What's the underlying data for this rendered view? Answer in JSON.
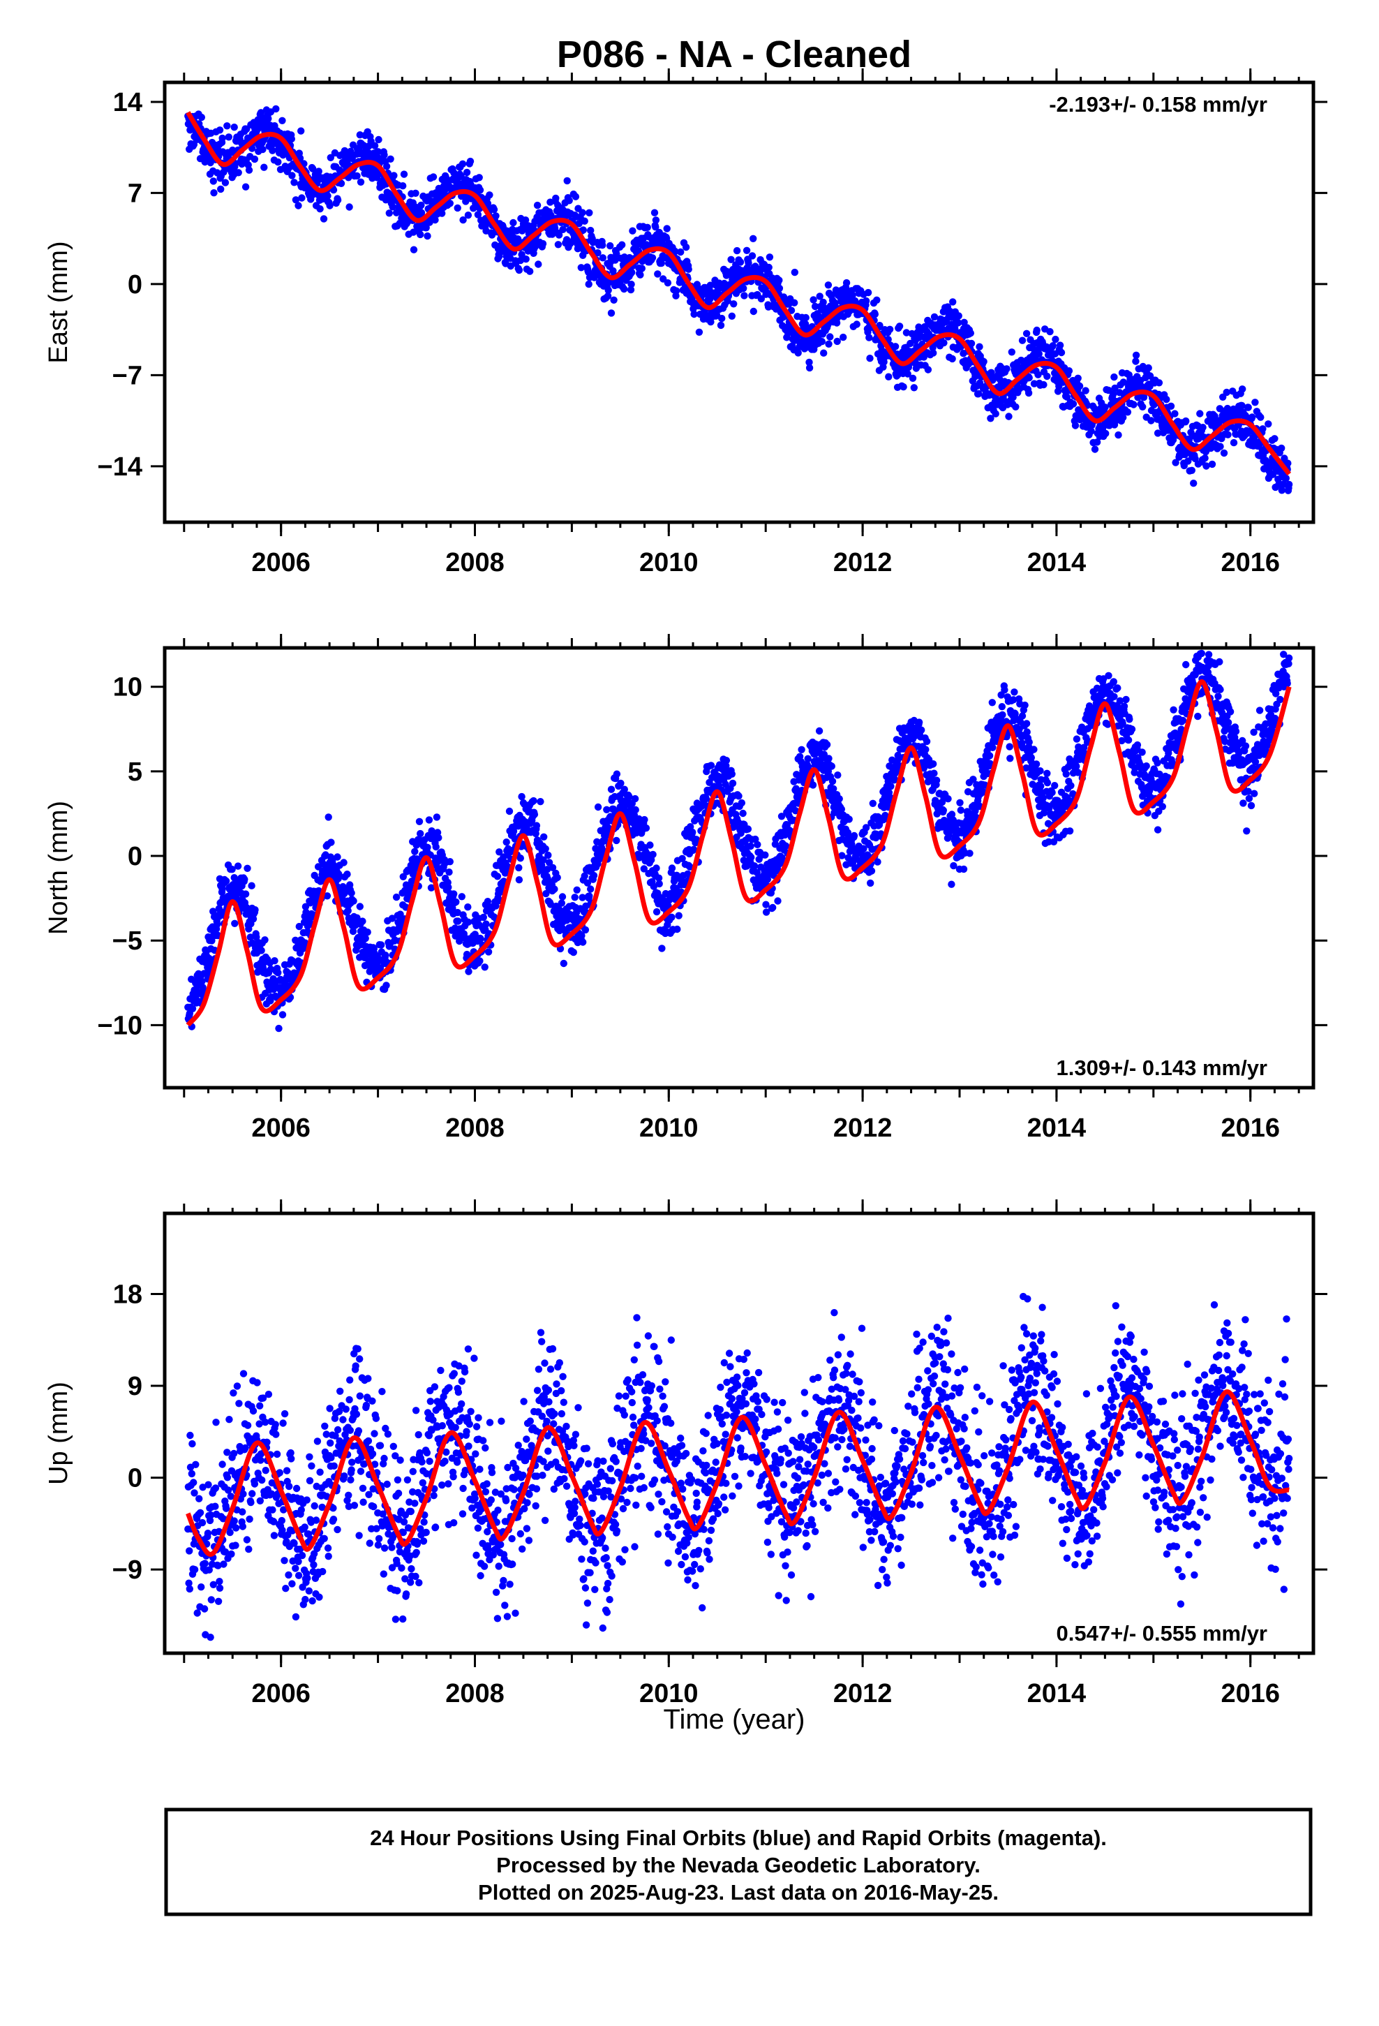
{
  "title": "P086  - NA - Cleaned",
  "xlabel": "Time (year)",
  "footer": {
    "line1": "24 Hour Positions Using Final Orbits (blue) and Rapid Orbits (magenta).",
    "line2": "Processed by the Nevada Geodetic Laboratory.",
    "line3": "Plotted on 2025-Aug-23. Last data on 2016-May-25."
  },
  "colors": {
    "points": "#0000ff",
    "fit": "#ff0000",
    "frame": "#000000"
  },
  "chart_data": [
    {
      "type": "scatter",
      "ylabel": "East (mm)",
      "rate_label": "-2.193+/- 0.158 mm/yr",
      "rate_position": "top-right",
      "xlim": [
        2004.8,
        2016.65
      ],
      "ylim": [
        -18.3,
        15.5
      ],
      "xticks": [
        2006,
        2008,
        2010,
        2012,
        2014,
        2016
      ],
      "xtick_labels": [
        "2006",
        "2008",
        "2010",
        "2012",
        "2014",
        "2016"
      ],
      "yticks": [
        14,
        7,
        0,
        -7,
        -14
      ],
      "ytick_labels": [
        "14",
        "7",
        "0",
        "−7",
        "−14"
      ],
      "series": [
        {
          "kind": "points",
          "color": "#0000ff",
          "start": 2005.04,
          "end": 2016.4,
          "offset": 11.92,
          "rate": -2.193,
          "annual_amp": 1.8,
          "annual_phase_year": 2005.88,
          "noise_sd": 1.0
        },
        {
          "kind": "fit",
          "color": "#ff0000",
          "x": [
            2005.04,
            2005.2,
            2005.4,
            2005.6,
            2005.8,
            2006.0,
            2006.2,
            2006.4,
            2006.6,
            2006.8,
            2007.0,
            2007.2,
            2007.4,
            2007.6,
            2007.8,
            2008.0,
            2008.2,
            2008.4,
            2008.6,
            2008.8,
            2009.0,
            2009.2,
            2009.4,
            2009.6,
            2009.8,
            2010.0,
            2010.2,
            2010.4,
            2010.6,
            2010.8,
            2011.0,
            2011.2,
            2011.4,
            2011.6,
            2011.8,
            2012.0,
            2012.2,
            2012.4,
            2012.6,
            2012.8,
            2013.0,
            2013.2,
            2013.4,
            2013.6,
            2013.8,
            2014.0,
            2014.2,
            2014.4,
            2014.6,
            2014.8,
            2015.0,
            2015.2,
            2015.4,
            2015.6,
            2015.8,
            2016.0,
            2016.2,
            2016.4
          ],
          "y": [
            13.2,
            11.2,
            9.2,
            10.3,
            11.4,
            11.2,
            9.0,
            7.2,
            8.1,
            9.2,
            9.1,
            6.8,
            4.9,
            5.9,
            7.0,
            6.8,
            4.6,
            2.7,
            3.7,
            4.8,
            4.6,
            2.4,
            0.5,
            1.5,
            2.6,
            2.4,
            0.1,
            -1.8,
            -0.7,
            0.4,
            0.2,
            -2.0,
            -3.9,
            -2.9,
            -1.8,
            -2.0,
            -4.2,
            -6.1,
            -5.1,
            -4.0,
            -4.2,
            -6.4,
            -8.4,
            -7.3,
            -6.2,
            -6.4,
            -8.6,
            -10.5,
            -9.5,
            -8.4,
            -8.6,
            -10.8,
            -12.7,
            -11.7,
            -10.6,
            -10.8,
            -12.7,
            -14.6
          ]
        }
      ]
    },
    {
      "type": "scatter",
      "ylabel": "North (mm)",
      "rate_label": "1.309+/- 0.143 mm/yr",
      "rate_position": "bottom-right",
      "xlim": [
        2004.8,
        2016.65
      ],
      "ylim": [
        -13.7,
        12.3
      ],
      "xticks": [
        2006,
        2008,
        2010,
        2012,
        2014,
        2016
      ],
      "xtick_labels": [
        "2006",
        "2008",
        "2010",
        "2012",
        "2014",
        "2016"
      ],
      "yticks": [
        10,
        5,
        0,
        -5,
        -10
      ],
      "ytick_labels": [
        "10",
        "5",
        "0",
        "−5",
        "−10"
      ],
      "series": [
        {
          "kind": "points",
          "color": "#0000ff",
          "start": 2005.04,
          "end": 2016.4,
          "offset": -6.0,
          "rate": 1.309,
          "annual_amp": 3.3,
          "annual_phase_year": 2005.5,
          "noise_sd": 0.9
        },
        {
          "kind": "fit",
          "color": "#ff0000",
          "x": [
            2005.04,
            2005.2,
            2005.35,
            2005.5,
            2005.65,
            2005.8,
            2006.0,
            2006.2,
            2006.35,
            2006.5,
            2006.65,
            2006.8,
            2007.0,
            2007.2,
            2007.35,
            2007.5,
            2007.65,
            2007.8,
            2008.0,
            2008.2,
            2008.35,
            2008.5,
            2008.65,
            2008.8,
            2009.0,
            2009.2,
            2009.35,
            2009.5,
            2009.65,
            2009.8,
            2010.0,
            2010.2,
            2010.35,
            2010.5,
            2010.65,
            2010.8,
            2011.0,
            2011.2,
            2011.35,
            2011.5,
            2011.65,
            2011.8,
            2012.0,
            2012.2,
            2012.35,
            2012.5,
            2012.65,
            2012.8,
            2013.0,
            2013.2,
            2013.35,
            2013.5,
            2013.65,
            2013.8,
            2014.0,
            2014.2,
            2014.35,
            2014.5,
            2014.65,
            2014.8,
            2015.0,
            2015.2,
            2015.35,
            2015.5,
            2015.65,
            2015.8,
            2016.0,
            2016.2,
            2016.4
          ],
          "y": [
            -10.0,
            -8.8,
            -5.8,
            -2.7,
            -5.6,
            -9.0,
            -8.5,
            -7.1,
            -4.0,
            -1.4,
            -4.3,
            -7.7,
            -7.2,
            -5.8,
            -2.7,
            -0.1,
            -3.0,
            -6.4,
            -5.9,
            -4.5,
            -1.4,
            1.2,
            -1.7,
            -5.1,
            -4.6,
            -3.2,
            -0.1,
            2.5,
            -0.4,
            -3.8,
            -3.3,
            -1.9,
            1.2,
            3.8,
            0.9,
            -2.5,
            -2.0,
            -0.6,
            2.5,
            5.1,
            2.2,
            -1.2,
            -0.7,
            0.7,
            3.8,
            6.4,
            3.5,
            0.1,
            0.6,
            2.0,
            5.1,
            7.7,
            4.8,
            1.4,
            1.9,
            3.3,
            6.4,
            9.0,
            6.1,
            2.7,
            3.2,
            4.6,
            7.7,
            10.3,
            7.4,
            4.0,
            4.5,
            6.0,
            10.0
          ]
        }
      ]
    },
    {
      "type": "scatter",
      "ylabel": "Up (mm)",
      "rate_label": "0.547+/- 0.555 mm/yr",
      "rate_position": "bottom-right",
      "xlim": [
        2004.8,
        2016.65
      ],
      "ylim": [
        -17.2,
        25.9
      ],
      "xticks": [
        2006,
        2008,
        2010,
        2012,
        2014,
        2016
      ],
      "xtick_labels": [
        "2006",
        "2008",
        "2010",
        "2012",
        "2014",
        "2016"
      ],
      "yticks": [
        18,
        9,
        0,
        -9
      ],
      "ytick_labels": [
        "18",
        "9",
        "0",
        "−9"
      ],
      "series": [
        {
          "kind": "points",
          "color": "#0000ff",
          "start": 2005.04,
          "end": 2016.4,
          "offset": -2.0,
          "rate": 0.547,
          "annual_amp": 5.5,
          "annual_phase_year": 2005.75,
          "noise_sd": 4.0
        },
        {
          "kind": "fit",
          "color": "#ff0000",
          "x": [
            2005.04,
            2005.15,
            2005.3,
            2005.5,
            2005.75,
            2006.0,
            2006.2,
            2006.3,
            2006.5,
            2006.75,
            2007.0,
            2007.2,
            2007.3,
            2007.5,
            2007.75,
            2008.0,
            2008.2,
            2008.3,
            2008.5,
            2008.75,
            2009.0,
            2009.2,
            2009.3,
            2009.5,
            2009.75,
            2010.0,
            2010.2,
            2010.3,
            2010.5,
            2010.75,
            2011.0,
            2011.2,
            2011.3,
            2011.5,
            2011.75,
            2012.0,
            2012.2,
            2012.3,
            2012.5,
            2012.75,
            2013.0,
            2013.2,
            2013.3,
            2013.5,
            2013.75,
            2014.0,
            2014.2,
            2014.3,
            2014.5,
            2014.75,
            2015.0,
            2015.2,
            2015.3,
            2015.5,
            2015.75,
            2016.0,
            2016.2,
            2016.4
          ],
          "y": [
            -3.5,
            -6.0,
            -7.4,
            -3.0,
            3.4,
            -1.3,
            -5.9,
            -6.8,
            -2.5,
            3.9,
            -0.8,
            -5.4,
            -6.3,
            -2.0,
            4.4,
            -0.3,
            -4.9,
            -5.8,
            -1.5,
            4.9,
            0.2,
            -4.4,
            -5.3,
            -1.0,
            5.4,
            0.7,
            -3.9,
            -4.8,
            -0.5,
            5.9,
            1.2,
            -3.4,
            -4.3,
            0.0,
            6.4,
            1.7,
            -2.9,
            -3.8,
            0.5,
            6.9,
            2.2,
            -2.4,
            -3.3,
            1.0,
            7.4,
            2.7,
            -1.9,
            -2.8,
            1.5,
            7.9,
            3.2,
            -1.4,
            -2.3,
            2.0,
            8.4,
            3.7,
            -0.9,
            -1.2
          ]
        }
      ]
    }
  ]
}
